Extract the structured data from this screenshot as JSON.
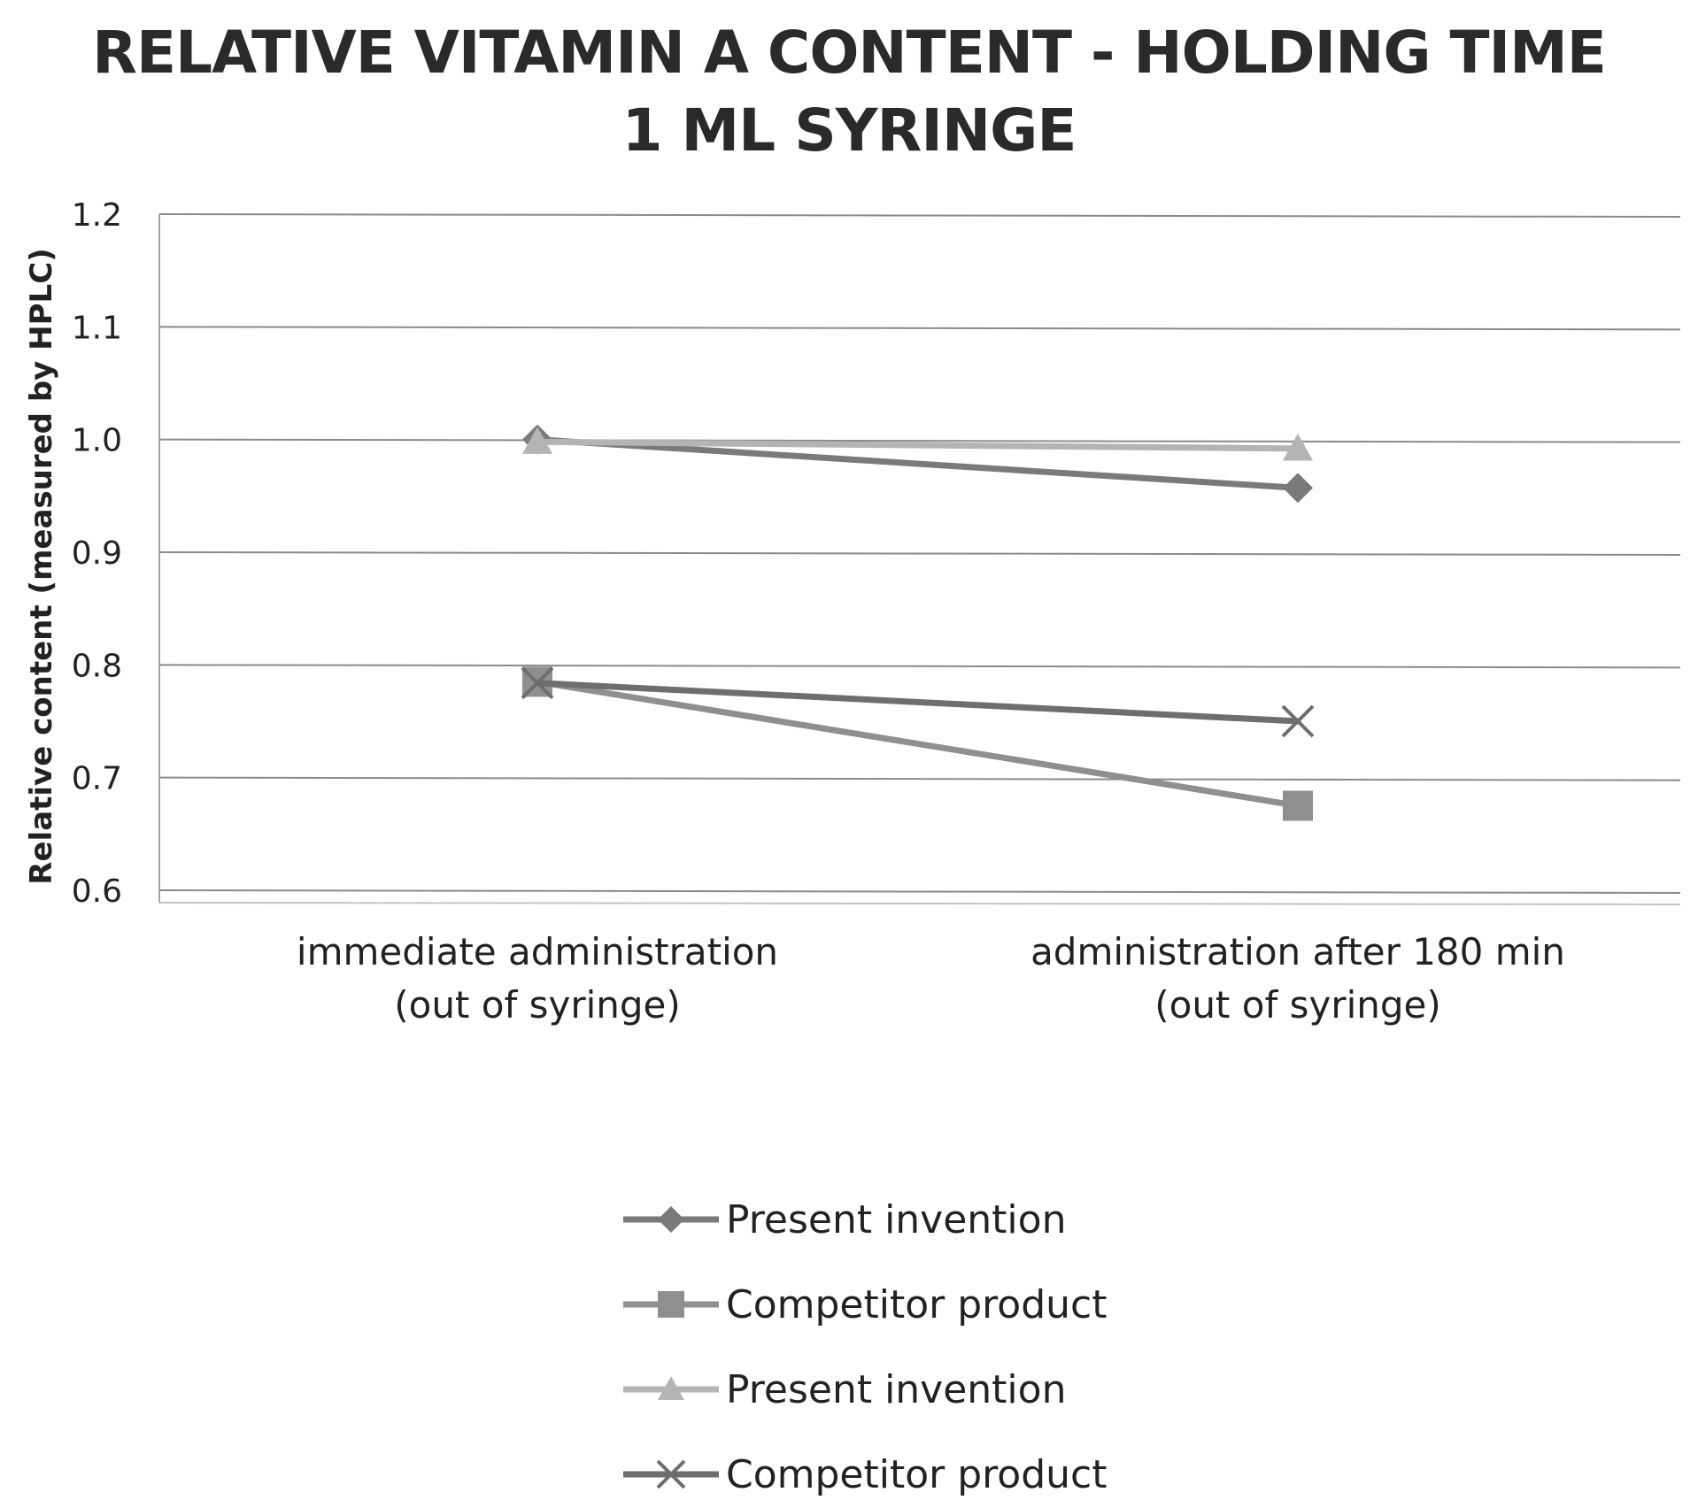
{
  "chart_data": {
    "type": "line",
    "title": [
      "RELATIVE VITAMIN A CONTENT - HOLDING TIME",
      "1 ML SYRINGE"
    ],
    "ylabel": "Relative content (measured by HPLC)",
    "xlabel": "",
    "categories": [
      [
        "immediate administration",
        "(out of syringe)"
      ],
      [
        "administration after 180 min",
        "(out of syringe)"
      ]
    ],
    "ylim": [
      0.6,
      1.2
    ],
    "yticks": [
      "0.6",
      "0.7",
      "0.8",
      "0.9",
      "1.0",
      "1.1",
      "1.2"
    ],
    "grid": true,
    "legend": "bottom",
    "series": [
      {
        "name": "Present invention",
        "marker": "diamond",
        "color": "#7a7a7a",
        "values": [
          1.0,
          0.957
        ]
      },
      {
        "name": "Competitor product",
        "marker": "square",
        "color": "#8f8f8f",
        "values": [
          0.785,
          0.675
        ]
      },
      {
        "name": "Present invention",
        "marker": "triangle",
        "color": "#b4b4b4",
        "values": [
          0.998,
          0.992
        ]
      },
      {
        "name": "Competitor product",
        "marker": "x",
        "color": "#6e6e6e",
        "values": [
          0.784,
          0.75
        ]
      }
    ]
  }
}
